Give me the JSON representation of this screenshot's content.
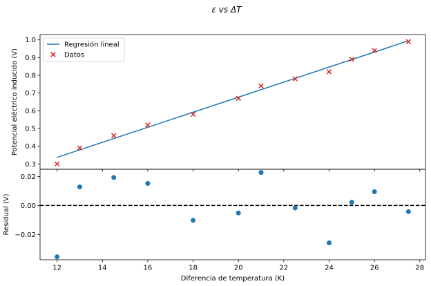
{
  "figure": {
    "title": "ε vs ΔT"
  },
  "colors": {
    "regression_line": "#1f77b4",
    "data_marker": "#d62728",
    "residual_marker": "#1f77b4",
    "zero_line": "#000000",
    "axes": "#000000",
    "background": "#ffffff",
    "legend_border": "#cccccc"
  },
  "chart_data": [
    {
      "type": "scatter",
      "panel": "top",
      "ylabel": "Potencial eléctrico inducido (V)",
      "xlim": [
        11.25,
        28.25
      ],
      "ylim": [
        0.27,
        1.03
      ],
      "yticks": [
        0.3,
        0.4,
        0.5,
        0.6,
        0.7,
        0.8,
        0.9,
        1.0
      ],
      "ytick_labels": [
        "0.3",
        "0.4",
        "0.5",
        "0.6",
        "0.7",
        "0.8",
        "0.9",
        "1.0"
      ],
      "legend": {
        "placement": "top-left",
        "entries": [
          {
            "label": "Regresión lineal",
            "marker": "line"
          },
          {
            "label": "Datos",
            "marker": "x"
          }
        ]
      },
      "series": [
        {
          "name": "Regresión lineal",
          "kind": "line",
          "x": [
            12.0,
            27.5
          ],
          "y": [
            0.337,
            0.995
          ]
        },
        {
          "name": "Datos",
          "kind": "x-marker",
          "x": [
            12.0,
            13.0,
            14.5,
            16.0,
            18.0,
            20.0,
            21.0,
            22.5,
            24.0,
            25.0,
            26.0,
            27.5
          ],
          "y": [
            0.3,
            0.39,
            0.46,
            0.52,
            0.58,
            0.67,
            0.74,
            0.78,
            0.82,
            0.89,
            0.94,
            0.99
          ]
        }
      ]
    },
    {
      "type": "scatter",
      "panel": "bottom",
      "xlabel": "Diferencia de temperatura (K)",
      "ylabel": "Residual (V)",
      "xlim": [
        11.25,
        28.25
      ],
      "ylim": [
        -0.0375,
        0.025
      ],
      "xticks": [
        12,
        14,
        16,
        18,
        20,
        22,
        24,
        26,
        28
      ],
      "xtick_labels": [
        "12",
        "14",
        "16",
        "18",
        "20",
        "22",
        "24",
        "26",
        "28"
      ],
      "yticks": [
        0.02,
        0.0,
        -0.02
      ],
      "ytick_labels": [
        "0.02",
        "0.00",
        "−0.02"
      ],
      "reference_line": {
        "y": 0.0,
        "style": "dashed"
      },
      "series": [
        {
          "kind": "circle-marker",
          "x": [
            12.0,
            13.0,
            14.5,
            16.0,
            18.0,
            20.0,
            21.0,
            22.5,
            24.0,
            25.0,
            26.0,
            27.5
          ],
          "y": [
            -0.0355,
            0.0128,
            0.0193,
            0.0152,
            -0.0103,
            -0.0052,
            0.0228,
            -0.0017,
            -0.0258,
            0.0022,
            0.0095,
            -0.0043
          ]
        }
      ]
    }
  ]
}
